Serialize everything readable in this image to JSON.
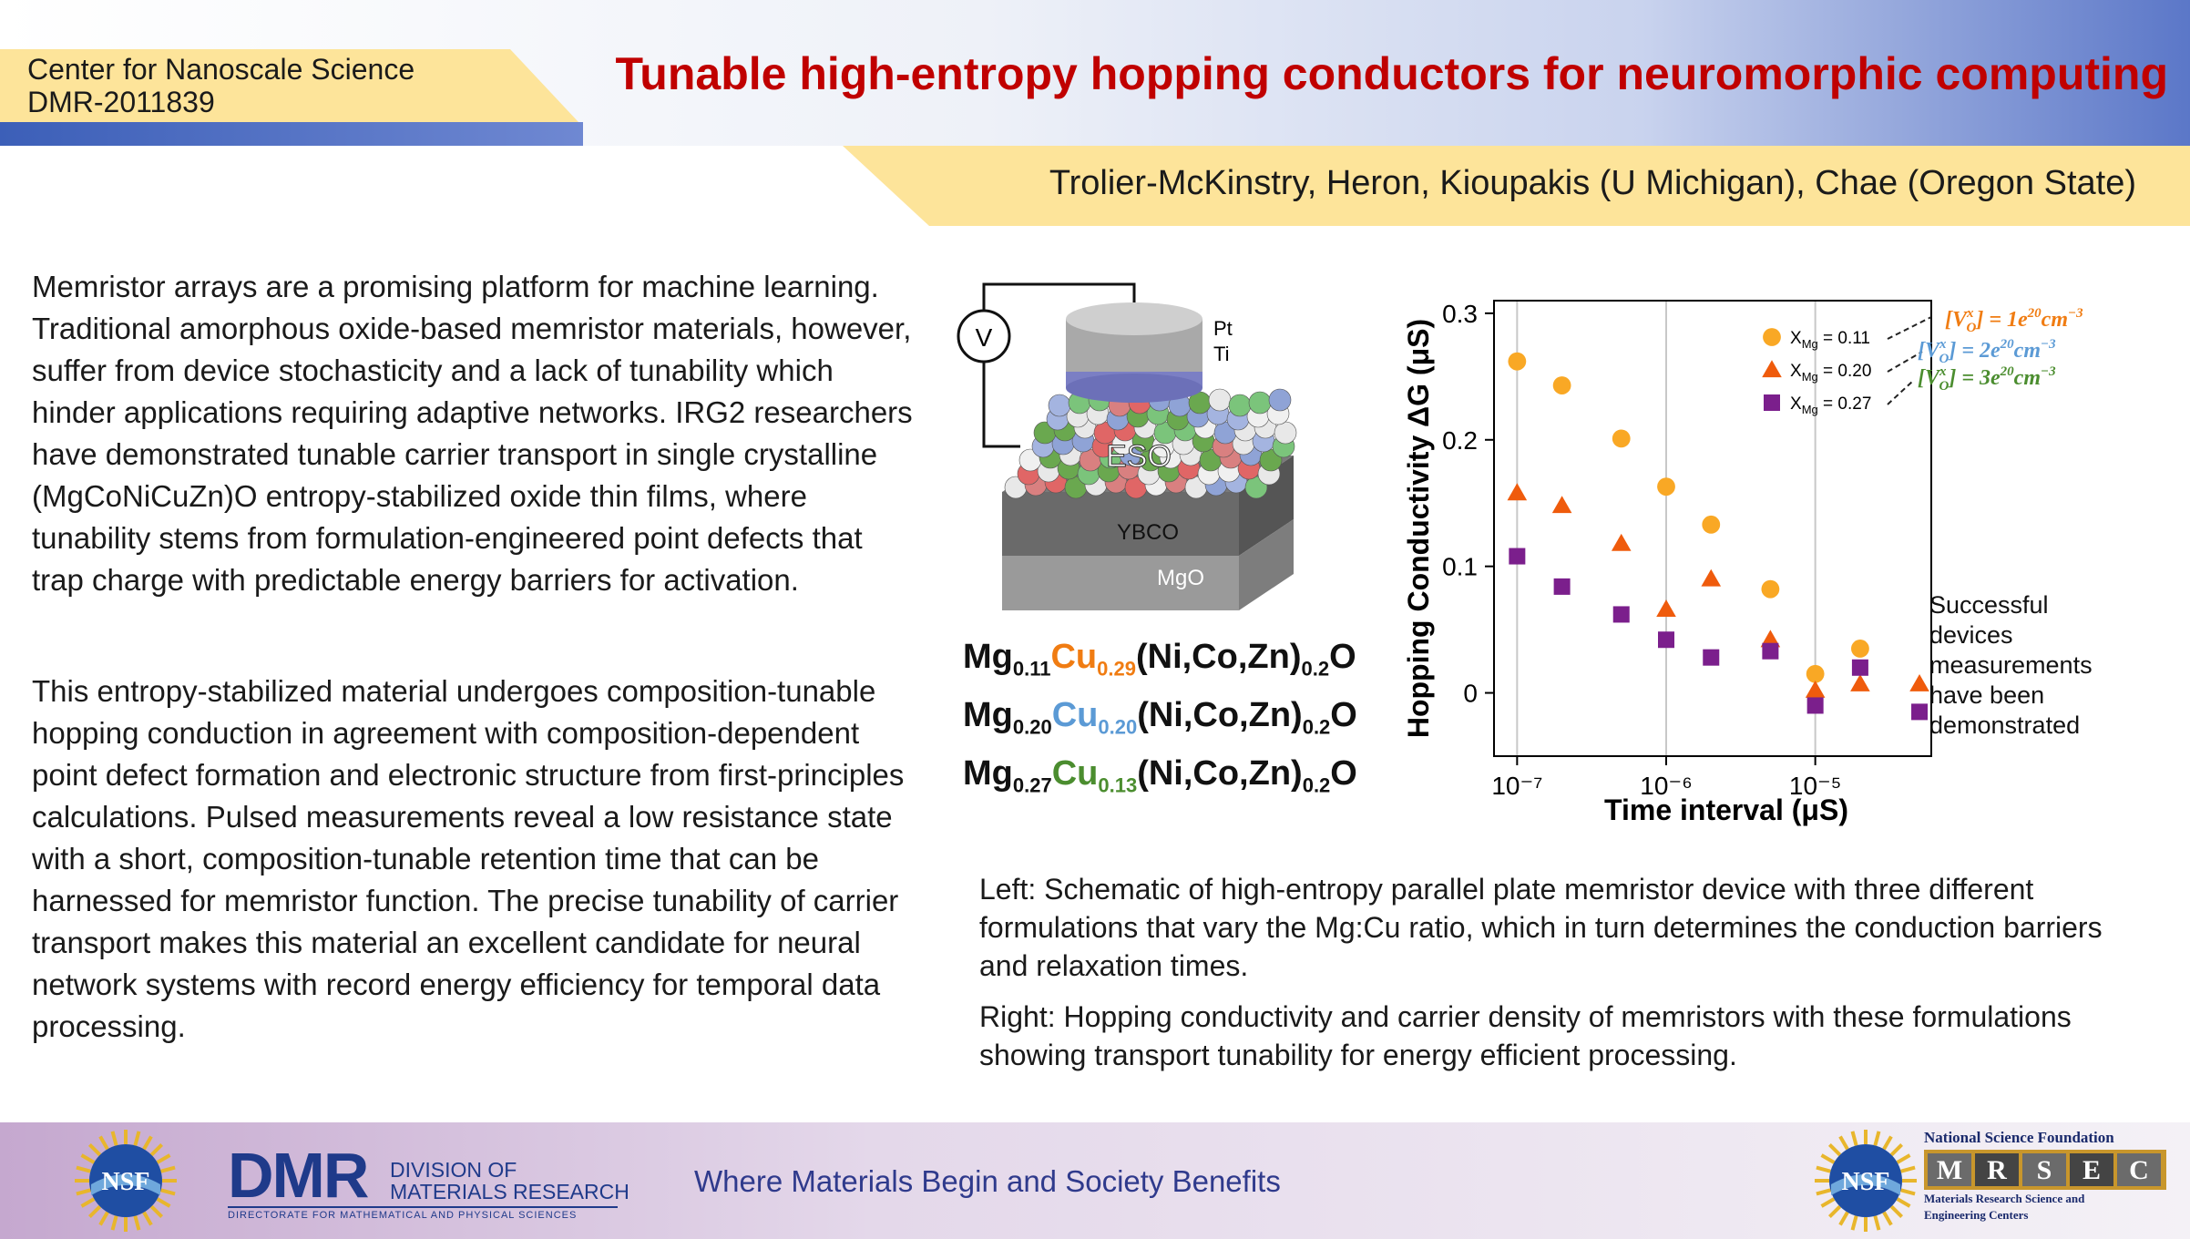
{
  "header": {
    "center_line1": "Center for Nanoscale Science",
    "center_line2": "DMR-2011839",
    "title": "Tunable high-entropy hopping conductors for neuromorphic computing",
    "authors": "Trolier-McKinstry, Heron, Kioupakis (U Michigan), Chae (Oregon State)"
  },
  "body": {
    "paragraph1": "Memristor arrays are a promising platform for machine learning. Traditional amorphous oxide-based memristor materials, however, suffer from device stochasticity and a lack of tunability which hinder applications requiring adaptive networks. IRG2 researchers have demonstrated tunable carrier transport in single crystalline (MgCoNiCuZn)O entropy-stabilized oxide thin films, where tunability stems from formulation-engineered point defects that trap charge with predictable energy barriers for activation.",
    "paragraph2": "This entropy-stabilized material undergoes composition-tunable hopping conduction in agreement with composition-dependent point defect formation and electronic structure from first-principles calculations. Pulsed measurements reveal a low resistance state with a short, composition-tunable retention time that can be harnessed for memristor function. The precise tunability of carrier transport makes this material an excellent candidate for neural network systems with record energy efficiency for temporal data processing."
  },
  "schematic": {
    "voltmeter": "V",
    "pt": "Pt",
    "ti": "Ti",
    "eso": "ESO",
    "ybco": "YBCO",
    "mgo": "MgO"
  },
  "formulas": [
    {
      "mg_sub": "0.11",
      "cu_sub": "0.29"
    },
    {
      "mg_sub": "0.20",
      "cu_sub": "0.20"
    },
    {
      "mg_sub": "0.27",
      "cu_sub": "0.13"
    }
  ],
  "formula_parts": {
    "mg": "Mg",
    "cu": "Cu",
    "rest": "(Ni,Co,Zn)",
    "rest_sub": "0.2",
    "o": "O"
  },
  "chart_data": {
    "type": "scatter",
    "xlabel": "Time interval (μS)",
    "ylabel": "Hopping Conductivity ΔG (μS)",
    "x_scale": "log",
    "xlim": [
      7e-08,
      6e-05
    ],
    "ylim": [
      -0.05,
      0.31
    ],
    "x_ticks": [
      "10⁻⁷",
      "10⁻⁶",
      "10⁻⁵"
    ],
    "y_ticks": [
      "0",
      "0.1",
      "0.2",
      "0.3"
    ],
    "grid": "vertical",
    "legend_position": "top-right",
    "series": [
      {
        "name": "X_Mg = 0.11",
        "marker": "circle",
        "color": "#f9a825",
        "points": [
          [
            1e-07,
            0.262
          ],
          [
            2e-07,
            0.243
          ],
          [
            5e-07,
            0.201
          ],
          [
            1e-06,
            0.163
          ],
          [
            2e-06,
            0.133
          ],
          [
            5e-06,
            0.082
          ],
          [
            1e-05,
            0.015
          ],
          [
            2e-05,
            0.035
          ]
        ]
      },
      {
        "name": "X_Mg = 0.20",
        "marker": "triangle",
        "color": "#ef5b0c",
        "points": [
          [
            1e-07,
            0.158
          ],
          [
            2e-07,
            0.148
          ],
          [
            5e-07,
            0.118
          ],
          [
            1e-06,
            0.066
          ],
          [
            2e-06,
            0.09
          ],
          [
            5e-06,
            0.042
          ],
          [
            1e-05,
            0.002
          ],
          [
            2e-05,
            0.007
          ],
          [
            5e-05,
            0.007
          ]
        ]
      },
      {
        "name": "X_Mg = 0.27",
        "marker": "square",
        "color": "#7b1f8c",
        "points": [
          [
            1e-07,
            0.108
          ],
          [
            2e-07,
            0.084
          ],
          [
            5e-07,
            0.062
          ],
          [
            1e-06,
            0.042
          ],
          [
            2e-06,
            0.028
          ],
          [
            5e-06,
            0.033
          ],
          [
            1e-05,
            -0.01
          ],
          [
            2e-05,
            0.02
          ],
          [
            5e-05,
            -0.015
          ]
        ]
      }
    ],
    "legend": [
      {
        "label_main": "X",
        "label_sub": "Mg",
        "value": " = 0.11"
      },
      {
        "label_main": "X",
        "label_sub": "Mg",
        "value": " = 0.20"
      },
      {
        "label_main": "X",
        "label_sub": "Mg",
        "value": " = 0.27"
      }
    ],
    "annotations": [
      {
        "text": "[V",
        "sup": "x",
        "sub": "O",
        "rest": "] = 1e",
        "exp": "20",
        "unit": "cm",
        "unit_exp": "−3",
        "color": "#f07c12"
      },
      {
        "text": "[V",
        "sup": "x",
        "sub": "O",
        "rest": "] = 2e",
        "exp": "20",
        "unit": "cm",
        "unit_exp": "−3",
        "color": "#5b9ad5"
      },
      {
        "text": "[V",
        "sup": "x",
        "sub": "O",
        "rest": "] = 3e",
        "exp": "20",
        "unit": "cm",
        "unit_exp": "−3",
        "color": "#4b8d2f"
      }
    ]
  },
  "chart_note": "Successful devices measurements have been demonstrated",
  "chart_note_lines": [
    "Successful",
    "devices",
    "measurements",
    "have been",
    "demonstrated"
  ],
  "caption": {
    "left_label": "Left:",
    "left_text": " Schematic of high-entropy parallel plate memristor device with three different formulations that vary the Mg:Cu ratio, which in turn determines the conduction barriers and relaxation times.",
    "right_label": "Right:",
    "right_text": " Hopping conductivity and carrier density of memristors with these formulations showing transport tunability for energy efficient processing."
  },
  "footer": {
    "tagline": "Where Materials Begin and Society Benefits",
    "nsf_logo": "NSF",
    "dmr_big": "DMR",
    "dmr_line1": "DIVISION OF",
    "dmr_line2": "MATERIALS RESEARCH",
    "dmr_sub": "DIRECTORATE FOR MATHEMATICAL AND PHYSICAL SCIENCES",
    "nsf_org": "National Science Foundation",
    "mrsec_letters": [
      "M",
      "R",
      "S",
      "E",
      "C"
    ],
    "mrsec_line1": "Materials Research Science and",
    "mrsec_line2": "Engineering Centers"
  }
}
